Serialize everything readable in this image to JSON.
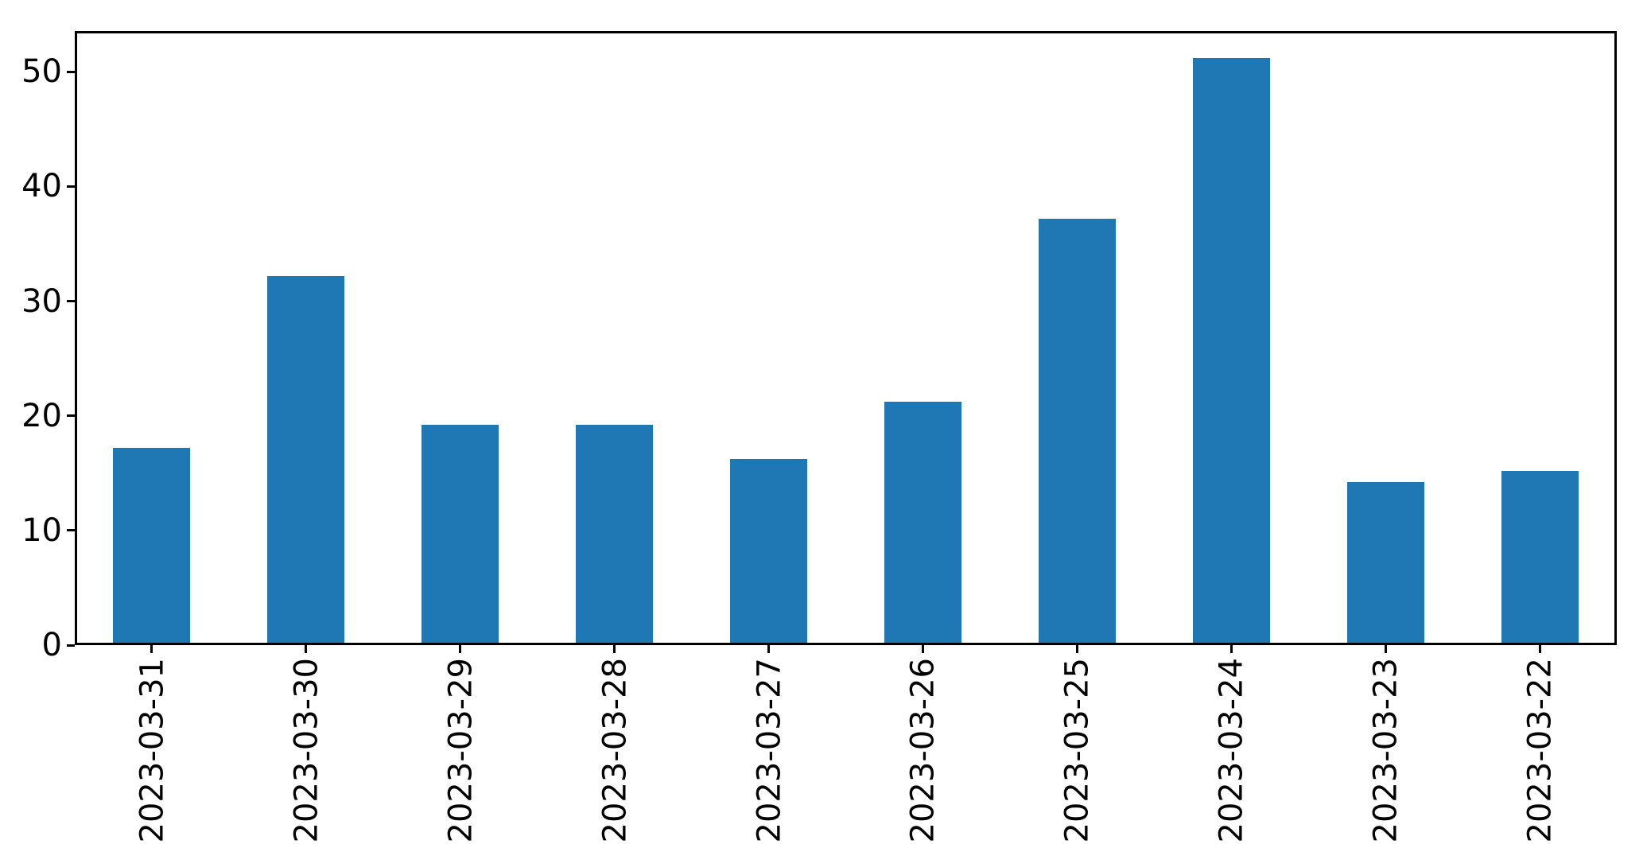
{
  "chart_data": {
    "type": "bar",
    "title": "",
    "xlabel": "",
    "ylabel": "",
    "categories": [
      "2023-03-31",
      "2023-03-30",
      "2023-03-29",
      "2023-03-28",
      "2023-03-27",
      "2023-03-26",
      "2023-03-25",
      "2023-03-24",
      "2023-03-23",
      "2023-03-22"
    ],
    "values": [
      17,
      32,
      19,
      19,
      16,
      21,
      37,
      51,
      14,
      15
    ],
    "yticks": [
      0,
      10,
      20,
      30,
      40,
      50
    ],
    "ylim": [
      0,
      53.55
    ],
    "x_tick_rotation": 90,
    "bar_width_fraction": 0.5,
    "grid": false,
    "legend": null,
    "bar_color": "#1f77b4",
    "axis_color": "#000000",
    "text_color": "#000000",
    "background_color": "#ffffff"
  }
}
